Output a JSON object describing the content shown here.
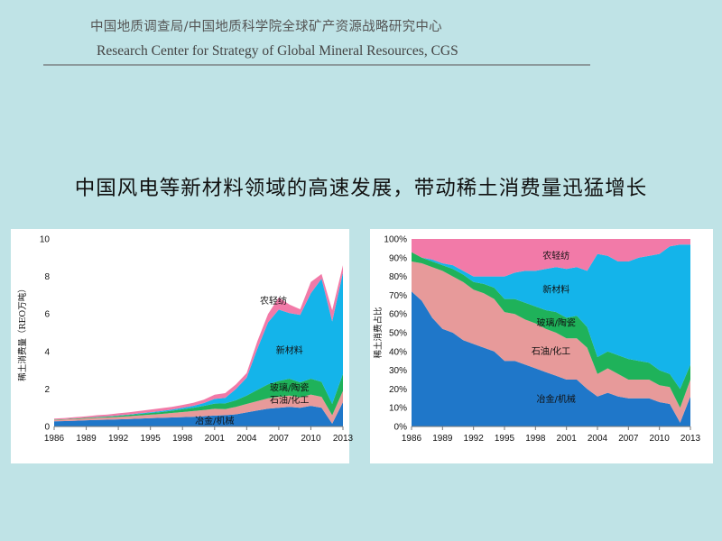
{
  "header": {
    "title_cn": "中国地质调查局/中国地质科学院全球矿产资源战略研究中心",
    "title_en": "Research Center for Strategy of Global Mineral Resources, CGS"
  },
  "subtitle": "中国风电等新材料领域的高速发展，带动稀土消费量迅猛增长",
  "colors": {
    "metallurgy": "#1f77c9",
    "petro": "#e79a9a",
    "glass": "#1fb25a",
    "newmat": "#14b4ea",
    "textile": "#f27aa8"
  },
  "chart_data": [
    {
      "type": "area",
      "stacked": true,
      "ylabel": "稀土消费量（REO万吨）",
      "ylim": [
        0,
        10
      ],
      "yticks": [
        "0",
        "2",
        "4",
        "6",
        "8",
        "10"
      ],
      "xticks": [
        "1986",
        "1989",
        "1992",
        "1995",
        "1998",
        "2001",
        "2004",
        "2007",
        "2010",
        "2013"
      ],
      "x": [
        1986,
        1987,
        1988,
        1989,
        1990,
        1991,
        1992,
        1993,
        1994,
        1995,
        1996,
        1997,
        1998,
        1999,
        2000,
        2001,
        2002,
        2003,
        2004,
        2005,
        2006,
        2007,
        2008,
        2009,
        2010,
        2011,
        2012,
        2013
      ],
      "series": [
        {
          "name": "冶金/机械",
          "values": [
            0.28,
            0.29,
            0.31,
            0.33,
            0.35,
            0.36,
            0.38,
            0.4,
            0.42,
            0.44,
            0.46,
            0.48,
            0.5,
            0.52,
            0.55,
            0.58,
            0.6,
            0.65,
            0.75,
            0.85,
            0.95,
            1.0,
            1.05,
            1.0,
            1.1,
            1.0,
            0.15,
            1.3
          ]
        },
        {
          "name": "石油/化工",
          "values": [
            0.07,
            0.08,
            0.09,
            0.1,
            0.11,
            0.12,
            0.13,
            0.15,
            0.17,
            0.19,
            0.21,
            0.24,
            0.27,
            0.3,
            0.33,
            0.36,
            0.33,
            0.4,
            0.45,
            0.5,
            0.55,
            0.58,
            0.6,
            0.55,
            0.6,
            0.58,
            0.45,
            0.6
          ]
        },
        {
          "name": "玻璃/陶瓷",
          "values": [
            0.02,
            0.02,
            0.03,
            0.03,
            0.04,
            0.05,
            0.06,
            0.07,
            0.08,
            0.09,
            0.1,
            0.12,
            0.15,
            0.18,
            0.22,
            0.28,
            0.3,
            0.35,
            0.45,
            0.6,
            0.75,
            0.85,
            0.9,
            0.8,
            0.85,
            0.8,
            0.6,
            0.9
          ]
        },
        {
          "name": "新材料",
          "values": [
            0.0,
            0.0,
            0.0,
            0.0,
            0.01,
            0.01,
            0.02,
            0.02,
            0.03,
            0.04,
            0.05,
            0.06,
            0.08,
            0.1,
            0.15,
            0.25,
            0.3,
            0.6,
            0.95,
            2.2,
            3.3,
            3.8,
            3.5,
            3.6,
            4.55,
            5.5,
            4.4,
            5.4
          ]
        },
        {
          "name": "农轻纺",
          "values": [
            0.05,
            0.06,
            0.07,
            0.08,
            0.09,
            0.1,
            0.11,
            0.12,
            0.13,
            0.14,
            0.15,
            0.15,
            0.15,
            0.16,
            0.18,
            0.22,
            0.25,
            0.25,
            0.25,
            0.4,
            0.45,
            0.65,
            0.45,
            0.3,
            0.6,
            0.25,
            0.6,
            0.4
          ]
        }
      ]
    },
    {
      "type": "area",
      "stacked": true,
      "percent": true,
      "ylabel": "稀土消费占比",
      "ylim": [
        0,
        100
      ],
      "yticks": [
        "0%",
        "10%",
        "20%",
        "30%",
        "40%",
        "50%",
        "60%",
        "70%",
        "80%",
        "90%",
        "100%"
      ],
      "xticks": [
        "1986",
        "1989",
        "1992",
        "1995",
        "1998",
        "2001",
        "2004",
        "2007",
        "2010",
        "2013"
      ],
      "x": [
        1986,
        1987,
        1988,
        1989,
        1990,
        1991,
        1992,
        1993,
        1994,
        1995,
        1996,
        1997,
        1998,
        1999,
        2000,
        2001,
        2002,
        2003,
        2004,
        2005,
        2006,
        2007,
        2008,
        2009,
        2010,
        2011,
        2012,
        2013
      ],
      "series": [
        {
          "name": "冶金/机械",
          "values": [
            72,
            67,
            58,
            52,
            50,
            46,
            44,
            42,
            40,
            35,
            35,
            33,
            31,
            29,
            27,
            25,
            25,
            20,
            16,
            18,
            16,
            15,
            15,
            15,
            13,
            12,
            2,
            16
          ]
        },
        {
          "name": "石油/化工",
          "values": [
            16,
            20,
            27,
            31,
            30,
            31,
            29,
            29,
            28,
            26,
            25,
            24,
            24,
            23,
            23,
            22,
            22,
            22,
            12,
            13,
            12,
            10,
            10,
            10,
            9,
            9,
            8,
            9
          ]
        },
        {
          "name": "玻璃/陶瓷",
          "values": [
            5,
            3,
            3,
            3,
            4,
            4,
            4,
            5,
            6,
            7,
            8,
            9,
            9,
            10,
            11,
            11,
            12,
            11,
            9,
            9,
            10,
            11,
            10,
            9,
            8,
            7,
            10,
            8
          ]
        },
        {
          "name": "新材料",
          "values": [
            0,
            0,
            1,
            1,
            2,
            2,
            3,
            4,
            6,
            12,
            14,
            17,
            19,
            22,
            24,
            26,
            26,
            30,
            55,
            51,
            50,
            52,
            55,
            57,
            62,
            68,
            77,
            64
          ]
        },
        {
          "name": "农轻纺",
          "values": [
            7,
            10,
            11,
            13,
            14,
            17,
            20,
            20,
            20,
            20,
            18,
            17,
            17,
            16,
            15,
            16,
            15,
            17,
            8,
            9,
            12,
            12,
            10,
            9,
            8,
            4,
            3,
            3
          ]
        }
      ]
    }
  ]
}
